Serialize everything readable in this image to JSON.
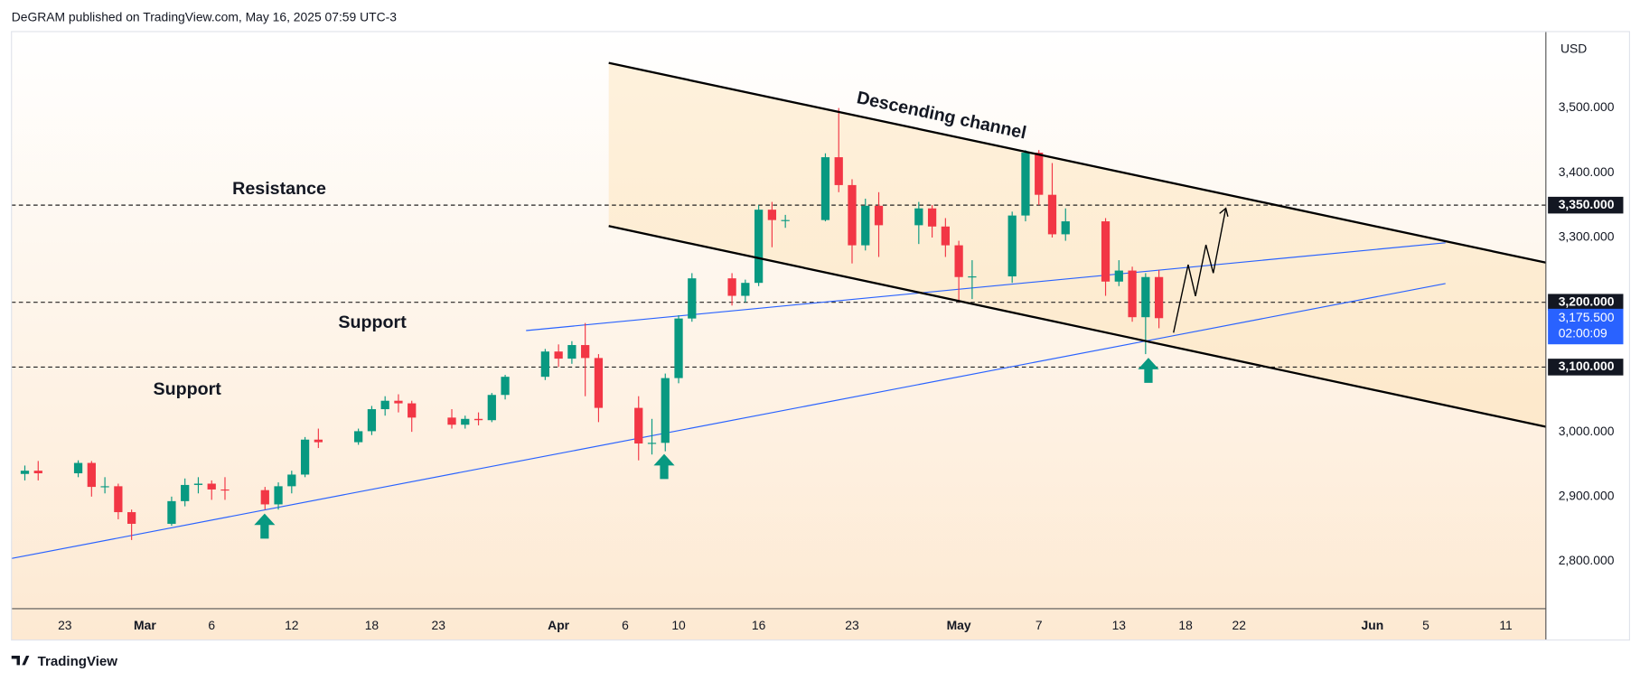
{
  "header": "DeGRAM published on TradingView.com, May 16, 2025 07:59 UTC-3",
  "brand": "TradingView",
  "chart_data": {
    "type": "candlestick",
    "currency": "USD",
    "annotations": [
      "Descending channel",
      "Resistance",
      "Support",
      "Support"
    ],
    "x": [
      "02-20",
      "02-21",
      "02-24",
      "02-25",
      "02-26",
      "02-27",
      "02-28",
      "03-03",
      "03-04",
      "03-05",
      "03-06",
      "03-07",
      "03-10",
      "03-11",
      "03-12",
      "03-13",
      "03-14",
      "03-17",
      "03-18",
      "03-19",
      "03-20",
      "03-21",
      "03-24",
      "03-25",
      "03-26",
      "03-27",
      "03-28",
      "03-31",
      "04-01",
      "04-02",
      "04-03",
      "04-04",
      "04-07",
      "04-08",
      "04-09",
      "04-10",
      "04-11",
      "04-14",
      "04-15",
      "04-16",
      "04-17",
      "04-18",
      "04-21",
      "04-22",
      "04-23",
      "04-24",
      "04-25",
      "04-28",
      "04-29",
      "04-30",
      "05-01",
      "05-02",
      "05-05",
      "05-06",
      "05-07",
      "05-08",
      "05-09",
      "05-12",
      "05-13",
      "05-14",
      "05-15",
      "05-16"
    ],
    "open": [
      2935,
      2940,
      2936,
      2952,
      2915,
      2916,
      2876,
      2858,
      2893,
      2918,
      2920,
      2911,
      2910,
      2888,
      2916,
      2934,
      2988,
      2984,
      3001,
      3035,
      3048,
      3044,
      3022,
      3011,
      3020,
      3018,
      3057,
      3085,
      3124,
      3113,
      3134,
      3114,
      3037,
      2982,
      2983,
      3083,
      3175,
      3237,
      3210,
      3230,
      3343,
      3327,
      3327,
      3424,
      3381,
      3288,
      3349,
      3319,
      3345,
      3317,
      3288,
      3239,
      3240,
      3334,
      3431,
      3366,
      3305,
      3325,
      3232,
      3249,
      3177,
      3239
    ],
    "high": [
      2948,
      2955,
      2956,
      2955,
      2930,
      2920,
      2880,
      2900,
      2928,
      2930,
      2925,
      2930,
      2915,
      2922,
      2940,
      2992,
      3005,
      3005,
      3040,
      3055,
      3058,
      3048,
      3035,
      3025,
      3030,
      3060,
      3088,
      3128,
      3135,
      3140,
      3168,
      3120,
      3055,
      3020,
      3090,
      3180,
      3245,
      3245,
      3235,
      3350,
      3355,
      3335,
      3430,
      3500,
      3390,
      3360,
      3370,
      3355,
      3350,
      3330,
      3295,
      3265,
      3340,
      3435,
      3435,
      3415,
      3345,
      3330,
      3265,
      3255,
      3245,
      3250
    ],
    "low": [
      2925,
      2925,
      2930,
      2900,
      2905,
      2865,
      2833,
      2855,
      2885,
      2905,
      2895,
      2895,
      2880,
      2880,
      2905,
      2930,
      2975,
      2980,
      2995,
      3025,
      3030,
      3000,
      3005,
      3005,
      3010,
      3015,
      3050,
      3080,
      3100,
      3105,
      3055,
      3015,
      2956,
      2965,
      2970,
      3075,
      3170,
      3195,
      3200,
      3225,
      3285,
      3315,
      3325,
      3370,
      3260,
      3280,
      3270,
      3290,
      3300,
      3270,
      3200,
      3205,
      3230,
      3325,
      3350,
      3300,
      3295,
      3210,
      3225,
      3170,
      3120,
      3160
    ],
    "close": [
      2940,
      2936,
      2952,
      2915,
      2916,
      2876,
      2858,
      2893,
      2918,
      2920,
      2911,
      2910,
      2888,
      2916,
      2934,
      2988,
      2984,
      3001,
      3035,
      3048,
      3044,
      3022,
      3011,
      3020,
      3018,
      3057,
      3085,
      3124,
      3113,
      3134,
      3114,
      3037,
      2982,
      2983,
      3083,
      3175,
      3237,
      3210,
      3230,
      3343,
      3327,
      3327,
      3424,
      3381,
      3288,
      3349,
      3319,
      3345,
      3317,
      3288,
      3239,
      3240,
      3334,
      3431,
      3366,
      3305,
      3325,
      3232,
      3249,
      3177,
      3239,
      3175.5
    ],
    "up_color": "#089981",
    "down_color": "#f23645",
    "xlim": [
      "02-19",
      "06-14"
    ],
    "xticks": [
      {
        "value": "02-23",
        "label": "23"
      },
      {
        "value": "03-01",
        "label": "Mar"
      },
      {
        "value": "03-06",
        "label": "6"
      },
      {
        "value": "03-12",
        "label": "12"
      },
      {
        "value": "03-18",
        "label": "18"
      },
      {
        "value": "03-23",
        "label": "23"
      },
      {
        "value": "04-01",
        "label": "Apr"
      },
      {
        "value": "04-06",
        "label": "6"
      },
      {
        "value": "04-10",
        "label": "10"
      },
      {
        "value": "04-16",
        "label": "16"
      },
      {
        "value": "04-23",
        "label": "23"
      },
      {
        "value": "05-01",
        "label": "May"
      },
      {
        "value": "05-07",
        "label": "7"
      },
      {
        "value": "05-13",
        "label": "13"
      },
      {
        "value": "05-18",
        "label": "18"
      },
      {
        "value": "05-22",
        "label": "22"
      },
      {
        "value": "06-01",
        "label": "Jun"
      },
      {
        "value": "06-05",
        "label": "5"
      },
      {
        "value": "06-11",
        "label": "11"
      }
    ],
    "ylim": [
      2727,
      3618
    ],
    "yticks": [
      {
        "value": 2800,
        "label": "2,800.000"
      },
      {
        "value": 2900,
        "label": "2,900.000"
      },
      {
        "value": 3000,
        "label": "3,000.000"
      },
      {
        "value": 3100,
        "label": "3,100.000"
      },
      {
        "value": 3200,
        "label": "3,200.000"
      },
      {
        "value": 3300,
        "label": "3,300.000"
      },
      {
        "value": 3400,
        "label": "3,400.000"
      },
      {
        "value": 3500,
        "label": "3,500.000"
      }
    ],
    "levels": [
      {
        "value": 3350,
        "label": "3,350.000"
      },
      {
        "value": 3200,
        "label": "3,200.000"
      },
      {
        "value": 3100,
        "label": "3,100.000"
      }
    ],
    "last_price": {
      "value": 3175.5,
      "label": "3,175.500",
      "countdown": "02:00:09",
      "color": "#2962ff"
    }
  }
}
